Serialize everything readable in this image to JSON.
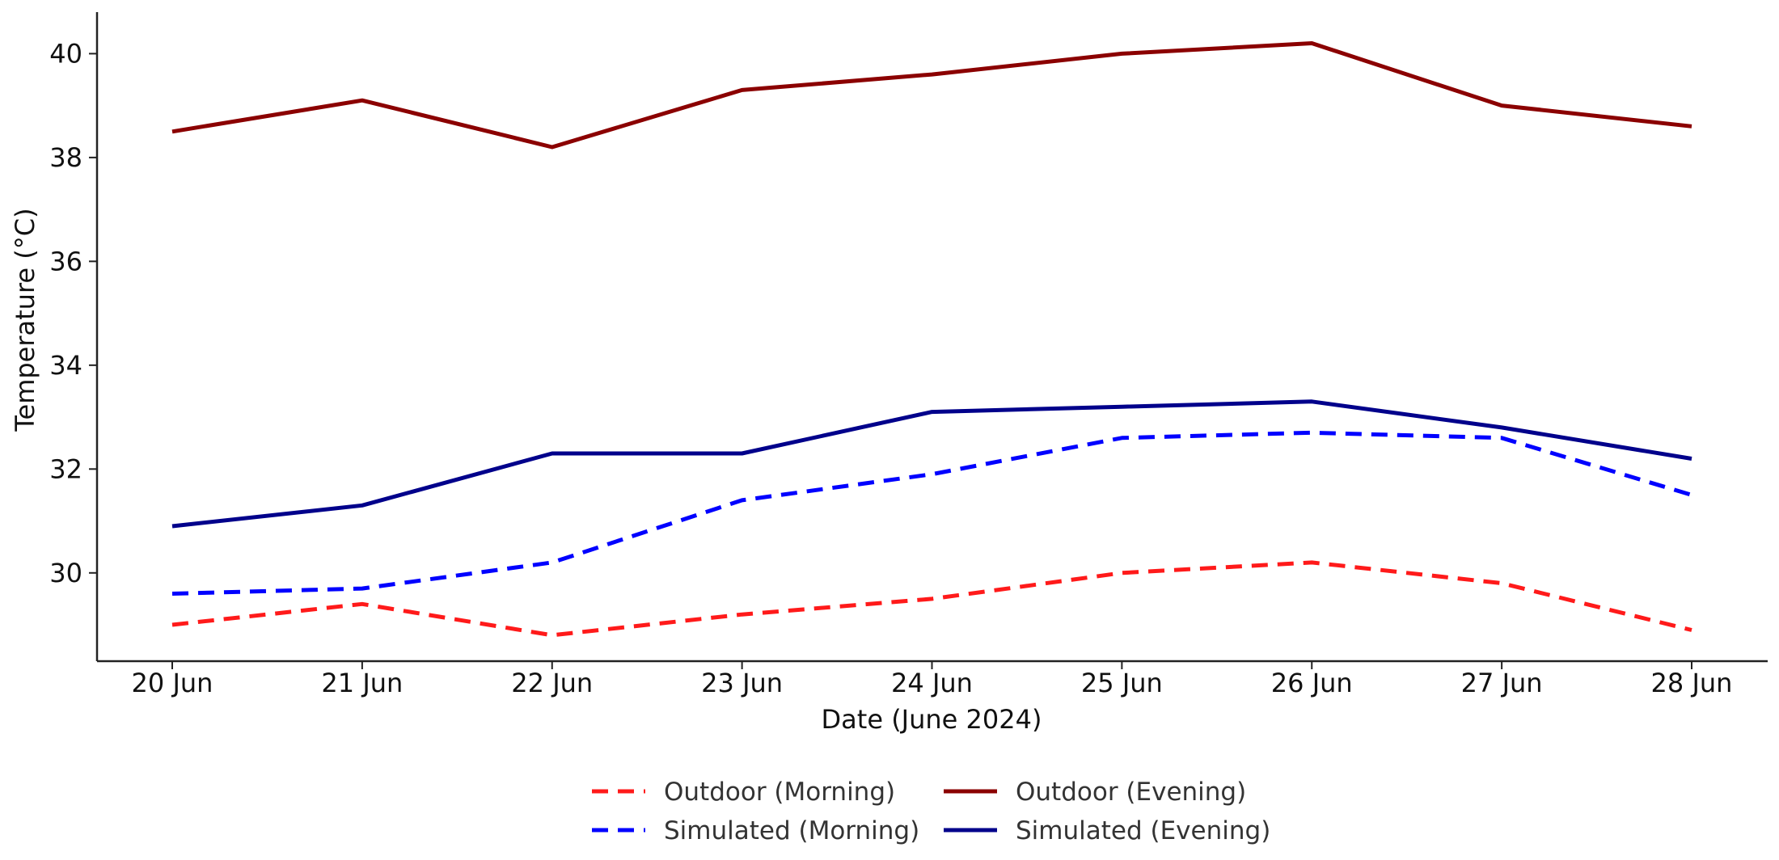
{
  "chart_data": {
    "type": "line",
    "title": "",
    "xlabel": "Date (June 2024)",
    "ylabel": "Temperature (°C)",
    "categories": [
      "20 Jun",
      "21 Jun",
      "22 Jun",
      "23 Jun",
      "24 Jun",
      "25 Jun",
      "26 Jun",
      "27 Jun",
      "28 Jun"
    ],
    "ylim": [
      28.3,
      40.8
    ],
    "yticks": [
      30,
      32,
      34,
      36,
      38,
      40
    ],
    "grid": false,
    "legend_position": "bottom",
    "series": [
      {
        "name": "Outdoor (Morning)",
        "color": "#ff1a1a",
        "dashed": true,
        "values": [
          29.0,
          29.4,
          28.8,
          29.2,
          29.5,
          30.0,
          30.2,
          29.8,
          28.9
        ]
      },
      {
        "name": "Outdoor (Evening)",
        "color": "#8b0000",
        "dashed": false,
        "values": [
          38.5,
          39.1,
          38.2,
          39.3,
          39.6,
          40.0,
          40.2,
          39.0,
          38.6
        ]
      },
      {
        "name": "Simulated (Morning)",
        "color": "#0000ff",
        "dashed": true,
        "values": [
          29.6,
          29.7,
          30.2,
          31.4,
          31.9,
          32.6,
          32.7,
          32.6,
          31.5
        ]
      },
      {
        "name": "Simulated (Evening)",
        "color": "#00008b",
        "dashed": false,
        "values": [
          30.9,
          31.3,
          32.3,
          32.3,
          33.1,
          33.2,
          33.3,
          32.8,
          32.2
        ]
      }
    ]
  }
}
